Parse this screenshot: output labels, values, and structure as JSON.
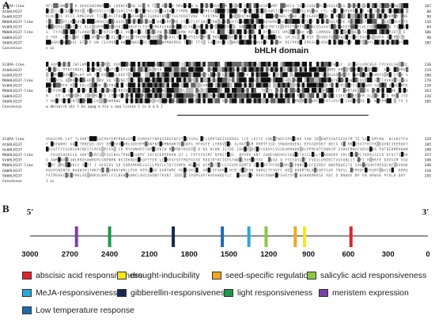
{
  "panel_a": {
    "label": "A",
    "domain_title": "bHLH domain",
    "blocks": [
      {
        "rows": [
          {
            "name": "SlUPA-like",
            "num": "107"
          },
          {
            "name": "AtbHLH137",
            "num": "80"
          },
          {
            "name": "OsbHLH137",
            "num": "90"
          },
          {
            "name": "MdbHLH137-like",
            "num": "116"
          },
          {
            "name": "VvbHLH137",
            "num": "84"
          },
          {
            "name": "MdbHLH137-like",
            "num": "106"
          },
          {
            "name": "GmbHLH137",
            "num": "98"
          },
          {
            "name": "SbbHLH137",
            "num": "105"
          }
        ],
        "consensus": "Consensus",
        "consensus_seq": "s  ns"
      },
      {
        "rows": [
          {
            "name": "SlUPA-like",
            "num": "236"
          },
          {
            "name": "AtbHLH137",
            "num": "219"
          },
          {
            "name": "OsbHLH137",
            "num": "206"
          },
          {
            "name": "MdbHLH137-like",
            "num": "270"
          },
          {
            "name": "VvbHLH137",
            "num": "226"
          },
          {
            "name": "MdbHLH137-like",
            "num": "263"
          },
          {
            "name": "GmbHLH137",
            "num": "226"
          },
          {
            "name": "SbbHLH137",
            "num": "205"
          }
        ],
        "consensus": "Consensus",
        "consensus_seq": "w   dkrvvrrh  ati   l  kv  aaaq e  hlv   v  eaa  lissie   l   iv  d a  k    l"
      },
      {
        "rows": [
          {
            "name": "SlUPA-like",
            "num": "329"
          },
          {
            "name": "AtbHLH137",
            "num": "285"
          },
          {
            "name": "OsbHLH137",
            "num": "290"
          },
          {
            "name": "MdbHLH137-like",
            "num": "357"
          },
          {
            "name": "VvbHLH137",
            "num": "348"
          },
          {
            "name": "MdbHLH137-like",
            "num": "348"
          },
          {
            "name": "GmbHLH137",
            "num": "310"
          },
          {
            "name": "SbbHLH137",
            "num": "291"
          }
        ],
        "consensus": "Consensus",
        "consensus_seq": "l                                                         cs"
      }
    ]
  },
  "panel_b": {
    "label": "B",
    "five_prime": "5'",
    "three_prime": "3'",
    "axis": {
      "min": 0,
      "max": 3000,
      "reversed": true,
      "ticks": [
        3000,
        2700,
        2400,
        2100,
        1800,
        1500,
        1200,
        900,
        600,
        300,
        0
      ]
    },
    "elements": [
      {
        "position": 2650,
        "color": "#7b3fa6"
      },
      {
        "position": 2400,
        "color": "#1a9a44"
      },
      {
        "position": 1920,
        "color": "#162a4d"
      },
      {
        "position": 1550,
        "color": "#1e6bb0"
      },
      {
        "position": 1350,
        "color": "#29a8dc"
      },
      {
        "position": 1220,
        "color": "#8dc63f"
      },
      {
        "position": 1000,
        "color": "#f2a71b"
      },
      {
        "position": 930,
        "color": "#f5e61c"
      },
      {
        "position": 580,
        "color": "#e0242a"
      }
    ]
  },
  "legend": [
    {
      "label": "abscisic acid responsiveness",
      "color": "#e0242a"
    },
    {
      "label": "drought-inducibility",
      "color": "#f5e61c"
    },
    {
      "label": "seed-specific regulation",
      "color": "#f2a71b"
    },
    {
      "label": "salicylic acid responsiveness",
      "color": "#8dc63f"
    },
    {
      "label": "MeJA-responsiveness",
      "color": "#29a8dc"
    },
    {
      "label": "gibberellin-responsiveness",
      "color": "#162a4d"
    },
    {
      "label": "light responsiveness",
      "color": "#1a9a44"
    },
    {
      "label": "meristem expression",
      "color": "#7b3fa6"
    },
    {
      "label": "Low temperature response",
      "color": "#1e6bb0"
    }
  ]
}
